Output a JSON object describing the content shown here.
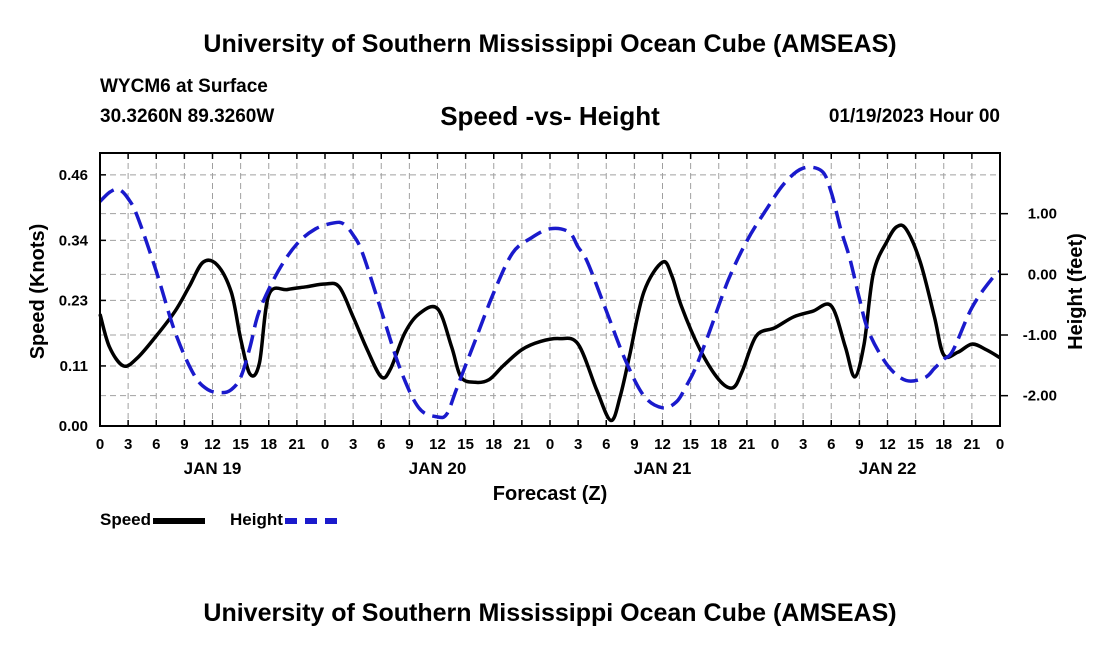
{
  "header": {
    "title": "University of Southern Mississippi Ocean Cube (AMSEAS)",
    "station": "WYCM6 at Surface",
    "location": "30.3260N  89.3260W",
    "chart_title": "Speed -vs- Height",
    "date": "01/19/2023 Hour 00"
  },
  "footer": {
    "title": "University of Southern Mississippi Ocean Cube (AMSEAS)"
  },
  "legend": {
    "speed_label": "Speed",
    "height_label": "Height",
    "speed_color": "#000000",
    "height_color": "#1a1acc"
  },
  "chart_data": {
    "type": "line",
    "title": "Speed -vs- Height",
    "xlabel": "Forecast (Z)",
    "ylabel": "Speed (Knots)",
    "y2label": "Height (feet)",
    "xlim": [
      0,
      96
    ],
    "ylim": [
      0.0,
      0.5
    ],
    "y2lim": [
      -2.5,
      2.0
    ],
    "grid": true,
    "xticks": [
      0,
      3,
      6,
      9,
      12,
      15,
      18,
      21,
      24,
      27,
      30,
      33,
      36,
      39,
      42,
      45,
      48,
      51,
      54,
      57,
      60,
      63,
      66,
      69,
      72,
      75,
      78,
      81,
      84,
      87,
      90,
      93,
      96
    ],
    "xtick_labels": [
      "0",
      "3",
      "6",
      "9",
      "12",
      "15",
      "18",
      "21",
      "0",
      "3",
      "6",
      "9",
      "12",
      "15",
      "18",
      "21",
      "0",
      "3",
      "6",
      "9",
      "12",
      "15",
      "18",
      "21",
      "0",
      "3",
      "6",
      "9",
      "12",
      "15",
      "18",
      "21",
      "0"
    ],
    "date_labels": [
      {
        "x": 12,
        "label": "JAN 19"
      },
      {
        "x": 36,
        "label": "JAN 20"
      },
      {
        "x": 60,
        "label": "JAN 21"
      },
      {
        "x": 84,
        "label": "JAN 22"
      }
    ],
    "yticks": [
      0.0,
      0.11,
      0.23,
      0.34,
      0.46
    ],
    "ytick_labels": [
      "0.00",
      "0.11",
      "0.23",
      "0.34",
      "0.46"
    ],
    "y2ticks": [
      1.0,
      0.0,
      -1.0,
      -2.0
    ],
    "y2tick_labels": [
      "1.00",
      "0.00",
      "-1.00",
      "-2.00"
    ],
    "series": [
      {
        "name": "Speed",
        "axis": "left",
        "color": "#000000",
        "dash": "solid",
        "x": [
          0,
          1,
          2.5,
          4,
          6,
          8,
          9.5,
          11,
          12.5,
          14,
          15,
          16,
          17,
          18,
          20,
          22,
          24,
          25.5,
          27,
          28.5,
          30,
          31,
          32.5,
          34,
          36,
          37.5,
          38.5,
          40,
          41.5,
          43,
          45,
          47,
          49,
          51,
          53,
          54.5,
          55.5,
          56.5,
          58,
          60,
          61,
          62,
          64,
          66,
          67.5,
          68.5,
          70,
          72,
          74,
          76,
          78,
          79.5,
          80.5,
          81.5,
          82.5,
          84,
          85,
          86,
          87.5,
          89,
          90,
          91.5,
          93,
          94.5,
          96
        ],
        "values": [
          0.205,
          0.145,
          0.11,
          0.125,
          0.165,
          0.21,
          0.255,
          0.3,
          0.295,
          0.245,
          0.16,
          0.095,
          0.115,
          0.24,
          0.25,
          0.255,
          0.26,
          0.255,
          0.2,
          0.14,
          0.09,
          0.105,
          0.17,
          0.205,
          0.215,
          0.145,
          0.09,
          0.08,
          0.085,
          0.11,
          0.14,
          0.155,
          0.16,
          0.15,
          0.065,
          0.01,
          0.055,
          0.13,
          0.245,
          0.3,
          0.275,
          0.22,
          0.14,
          0.085,
          0.07,
          0.1,
          0.165,
          0.18,
          0.2,
          0.21,
          0.22,
          0.145,
          0.09,
          0.15,
          0.28,
          0.34,
          0.365,
          0.36,
          0.3,
          0.2,
          0.13,
          0.135,
          0.15,
          0.14,
          0.125
        ]
      },
      {
        "name": "Height",
        "axis": "right",
        "color": "#1a1acc",
        "dash": "dashed",
        "x": [
          0,
          1,
          2,
          3,
          4,
          6,
          8,
          10,
          11.5,
          13,
          14,
          15,
          16,
          17,
          19,
          21,
          23,
          25,
          26,
          27,
          28,
          30,
          32,
          34,
          36,
          37,
          38,
          39,
          40,
          42,
          44,
          46,
          48,
          50,
          51,
          52,
          54,
          56,
          58,
          60,
          61.5,
          62.5,
          63.5,
          65,
          67,
          69,
          71,
          73,
          75,
          77,
          78,
          79,
          80,
          81,
          82,
          84,
          86,
          88,
          89,
          90,
          91,
          93,
          95,
          96
        ],
        "values": [
          1.2,
          1.35,
          1.4,
          1.25,
          0.95,
          0.05,
          -0.95,
          -1.65,
          -1.9,
          -1.95,
          -1.9,
          -1.7,
          -1.2,
          -0.6,
          0.05,
          0.5,
          0.75,
          0.85,
          0.83,
          0.65,
          0.35,
          -0.6,
          -1.55,
          -2.2,
          -2.35,
          -2.3,
          -1.9,
          -1.5,
          -1.1,
          -0.3,
          0.35,
          0.6,
          0.75,
          0.7,
          0.45,
          0.2,
          -0.6,
          -1.4,
          -2.0,
          -2.2,
          -2.1,
          -1.85,
          -1.55,
          -0.95,
          -0.1,
          0.55,
          1.05,
          1.5,
          1.75,
          1.7,
          1.35,
          0.75,
          0.25,
          -0.4,
          -0.95,
          -1.5,
          -1.75,
          -1.7,
          -1.55,
          -1.4,
          -1.25,
          -0.55,
          -0.1,
          0.05
        ]
      }
    ]
  }
}
